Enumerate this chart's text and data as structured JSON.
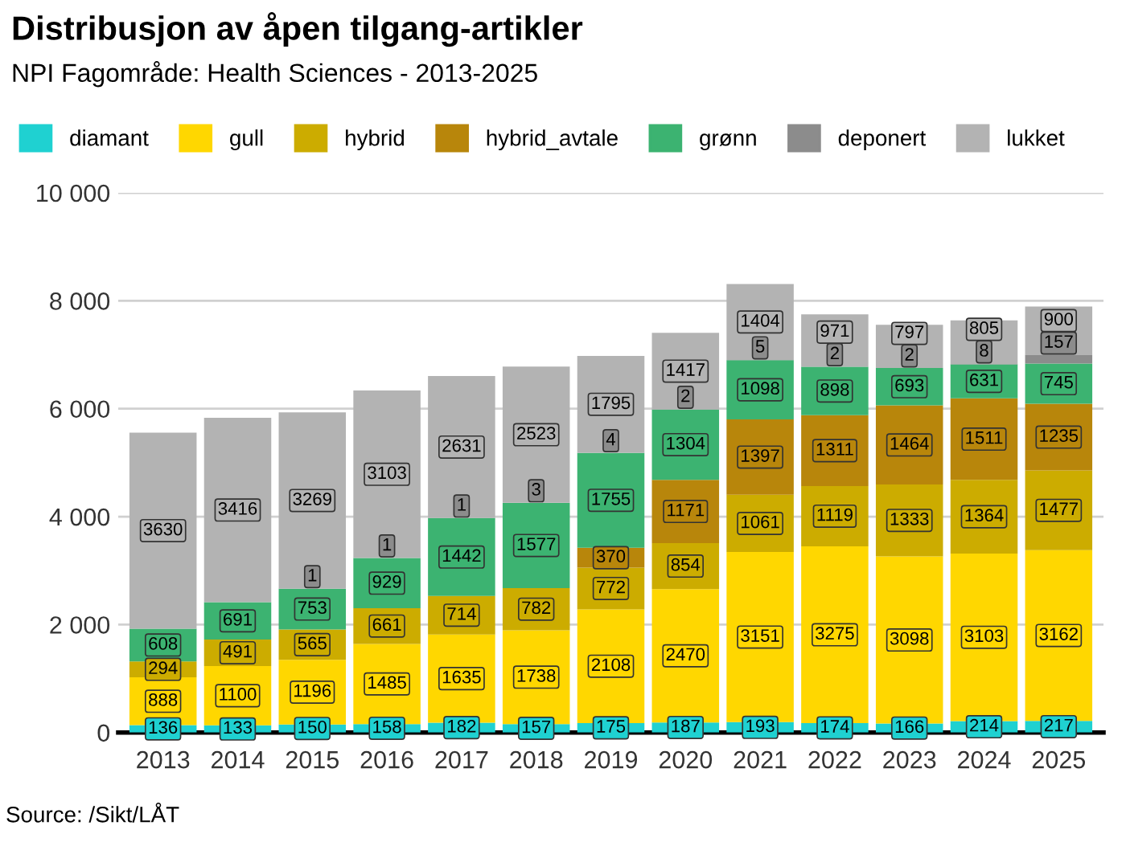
{
  "chart_data": {
    "type": "bar",
    "title": "Distribusjon av åpen tilgang-artikler",
    "subtitle": "NPI Fagområde: Health Sciences - 2013-2025",
    "categories": [
      "2013",
      "2014",
      "2015",
      "2016",
      "2017",
      "2018",
      "2019",
      "2020",
      "2021",
      "2022",
      "2023",
      "2024",
      "2025"
    ],
    "stacked": true,
    "data_labels": true,
    "grid": "y",
    "legend": "top",
    "ylim": [
      0,
      10000
    ],
    "yticks": [
      0,
      {
        "value": 2000,
        "label": "2 000"
      },
      {
        "value": 4000,
        "label": "4 000"
      },
      {
        "value": 6000,
        "label": "6 000"
      },
      {
        "value": 8000,
        "label": "8 000"
      },
      {
        "value": 10000,
        "label": "10 000"
      }
    ],
    "series": [
      {
        "name": "diamant",
        "color": "#1fd1d1",
        "values": [
          136,
          133,
          150,
          158,
          182,
          157,
          175,
          187,
          193,
          174,
          166,
          214,
          217
        ]
      },
      {
        "name": "gull",
        "color": "#ffd700",
        "values": [
          888,
          1100,
          1196,
          1485,
          1635,
          1738,
          2108,
          2470,
          3151,
          3275,
          3098,
          3103,
          3162
        ]
      },
      {
        "name": "hybrid",
        "color": "#ccac00",
        "values": [
          294,
          491,
          565,
          661,
          714,
          782,
          772,
          854,
          1061,
          1119,
          1333,
          1364,
          1477
        ]
      },
      {
        "name": "hybrid_avtale",
        "color": "#b8860b",
        "values": [
          null,
          null,
          null,
          null,
          null,
          null,
          370,
          1171,
          1397,
          1311,
          1464,
          1511,
          1235
        ]
      },
      {
        "name": "grønn",
        "color": "#3cb371",
        "values": [
          608,
          691,
          753,
          929,
          1442,
          1577,
          1755,
          1304,
          1098,
          898,
          693,
          631,
          745
        ]
      },
      {
        "name": "deponert",
        "color": "#8c8c8c",
        "values": [
          null,
          null,
          1,
          1,
          1,
          3,
          4,
          2,
          5,
          2,
          2,
          8,
          157
        ]
      },
      {
        "name": "lukket",
        "color": "#b3b3b3",
        "values": [
          3630,
          3416,
          3269,
          3103,
          2631,
          2523,
          1795,
          1417,
          1404,
          971,
          797,
          805,
          900
        ]
      }
    ],
    "annotations": [
      "Source: /Sikt/LÅT"
    ]
  }
}
